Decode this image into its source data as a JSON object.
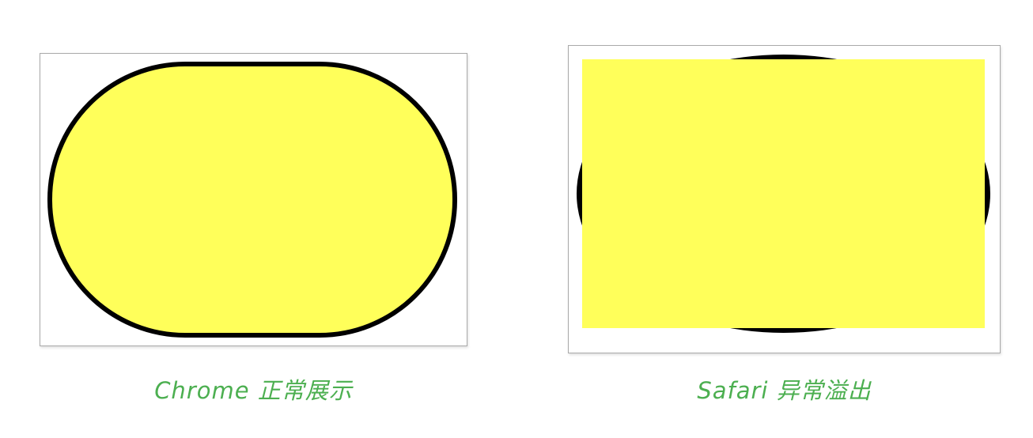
{
  "colors": {
    "fill": "#ffff5a",
    "stroke": "#000000",
    "caption": "#4caf50"
  },
  "captions": {
    "chrome": "Chrome 正常展示",
    "safari": "Safari 异常溢出"
  }
}
